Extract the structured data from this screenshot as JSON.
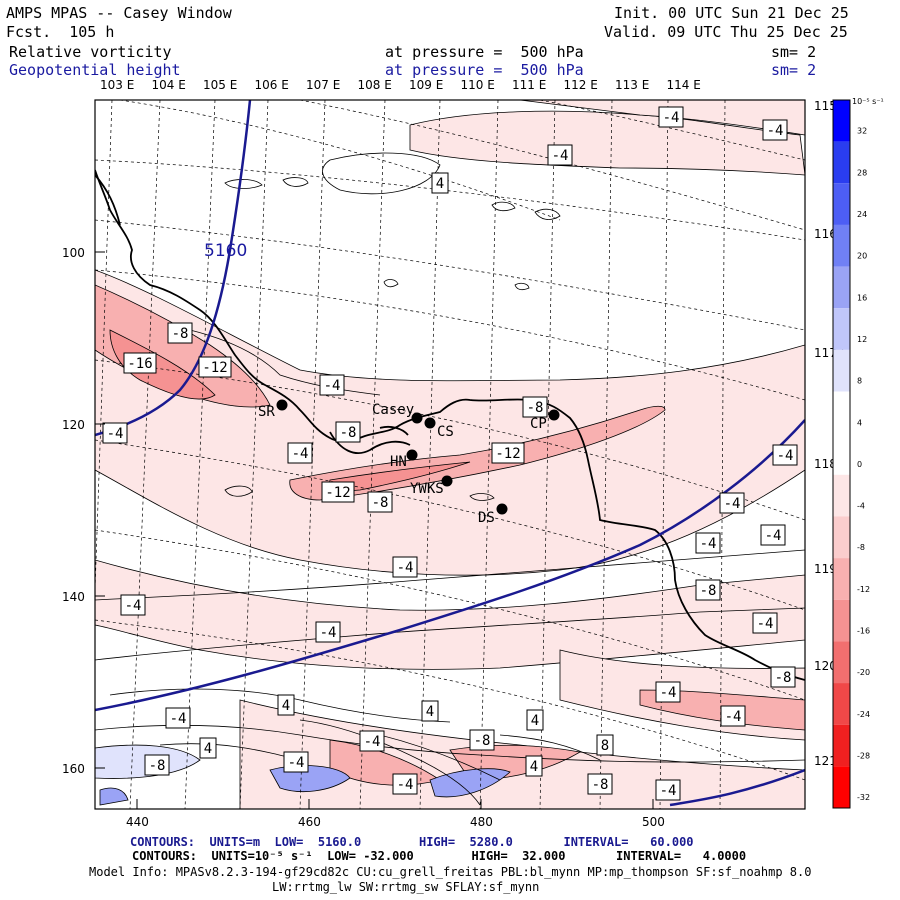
{
  "header": {
    "title": "AMPS MPAS -- Casey Window",
    "fcst": "Fcst.  105 h",
    "init": "Init. 00 UTC Sun 21 Dec 25",
    "valid": "Valid. 09 UTC Thu 25 Dec 25",
    "field1": {
      "name": "Relative vorticity",
      "pressure": "at pressure =  500 hPa",
      "sm": "sm= 2"
    },
    "field2": {
      "name": "Geopotential height",
      "pressure": "at pressure =  500 hPa",
      "sm": "sm= 2"
    }
  },
  "axes": {
    "top_lon": [
      "103 E",
      "104 E",
      "105 E",
      "106 E",
      "107 E",
      "108 E",
      "109 E",
      "110 E",
      "111 E",
      "112 E",
      "113 E",
      "114 E"
    ],
    "right_lon": [
      "115 E",
      "116 E",
      "117 E",
      "118 E",
      "119 E",
      "120 E",
      "121 E"
    ],
    "left_y": [
      "100",
      "120",
      "140",
      "160"
    ],
    "bottom_x": [
      "440",
      "460",
      "480",
      "500"
    ]
  },
  "colorbar": {
    "unit_label": "10⁻⁵ s⁻¹",
    "levels": [
      "32",
      "28",
      "24",
      "20",
      "16",
      "12",
      "8",
      "4",
      "0",
      "-4",
      "-8",
      "-12",
      "-16",
      "-20",
      "-24",
      "-28",
      "-32"
    ],
    "colors": [
      "#0000ff",
      "#2a3df0",
      "#4d5ef5",
      "#7080f5",
      "#9aa3f5",
      "#c0c6fa",
      "#e0e3fc",
      "#ffffff",
      "#ffffff",
      "#fde6e6",
      "#fbcdcd",
      "#f8b0b0",
      "#f59292",
      "#f26f6f",
      "#f04848",
      "#f02020",
      "#ff0000"
    ]
  },
  "stations": [
    {
      "label": "SR"
    },
    {
      "label": "Casey"
    },
    {
      "label": "CS"
    },
    {
      "label": "CP"
    },
    {
      "label": "HN"
    },
    {
      "label": "YWKS"
    },
    {
      "label": "DS"
    }
  ],
  "contour_labels": {
    "height": "5160",
    "vort": [
      "-4",
      "-4",
      "-4",
      "4",
      "-8",
      "-16",
      "-12",
      "-4",
      "-8",
      "-8",
      "-4",
      "-12",
      "-12",
      "-8",
      "-4",
      "-4",
      "-4",
      "-4",
      "-4",
      "-4",
      "-8",
      "-4",
      "-4",
      "-8",
      "-4",
      "4",
      "-4",
      "4",
      "4",
      "-4",
      "4",
      "-4",
      "-8",
      "-4",
      "4",
      "-4",
      "-8",
      "-4",
      "-8",
      "-4",
      "8"
    ]
  },
  "footer": {
    "line1": "CONTOURS:  UNITS=m  LOW=  5160.0        HIGH=  5280.0       INTERVAL=   60.000",
    "line2": "CONTOURS:  UNITS=10⁻⁵ s⁻¹  LOW= -32.000        HIGH=  32.000       INTERVAL=   4.0000",
    "line3": "Model Info: MPASv8.2.3-194-gf29cd82c CU:cu_grell_freitas PBL:bl_mynn MP:mp_thompson SF:sf_noahmp 8.0",
    "line4": "LW:rrtmg_lw SW:rrtmg_sw SFLAY:sf_mynn"
  }
}
